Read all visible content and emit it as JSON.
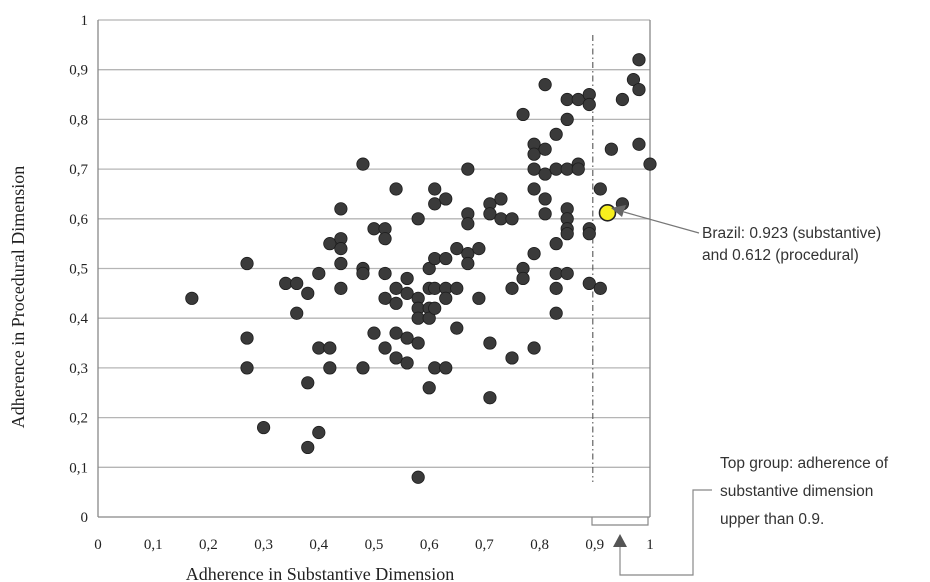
{
  "chart_data": {
    "type": "scatter",
    "xlabel": "Adherence in Substantive Dimension",
    "ylabel": "Adherence in Procedural Dimension",
    "xlim": [
      0,
      1
    ],
    "ylim": [
      0,
      1
    ],
    "x_ticks": [
      "0",
      "0,1",
      "0,2",
      "0,3",
      "0,4",
      "0,5",
      "0,6",
      "0,7",
      "0,8",
      "0,9",
      "1"
    ],
    "y_ticks": [
      "0",
      "0,1",
      "0,2",
      "0,3",
      "0,4",
      "0,5",
      "0,6",
      "0,7",
      "0,8",
      "0,9",
      "1"
    ],
    "grid": "horizontal",
    "threshold_x": 0.9,
    "colors": {
      "points": "#3a3a3a",
      "highlight": "#f7ef1e",
      "grid": "#b5b5b5",
      "axis": "#888888",
      "annotation": "#777777"
    },
    "points": [
      [
        0.17,
        0.44
      ],
      [
        0.27,
        0.51
      ],
      [
        0.27,
        0.36
      ],
      [
        0.27,
        0.3
      ],
      [
        0.3,
        0.18
      ],
      [
        0.34,
        0.47
      ],
      [
        0.36,
        0.47
      ],
      [
        0.36,
        0.41
      ],
      [
        0.38,
        0.45
      ],
      [
        0.38,
        0.27
      ],
      [
        0.38,
        0.14
      ],
      [
        0.4,
        0.49
      ],
      [
        0.4,
        0.34
      ],
      [
        0.4,
        0.17
      ],
      [
        0.42,
        0.55
      ],
      [
        0.42,
        0.34
      ],
      [
        0.42,
        0.3
      ],
      [
        0.44,
        0.62
      ],
      [
        0.44,
        0.56
      ],
      [
        0.44,
        0.54
      ],
      [
        0.44,
        0.51
      ],
      [
        0.44,
        0.46
      ],
      [
        0.48,
        0.71
      ],
      [
        0.48,
        0.5
      ],
      [
        0.48,
        0.49
      ],
      [
        0.48,
        0.3
      ],
      [
        0.5,
        0.58
      ],
      [
        0.5,
        0.37
      ],
      [
        0.52,
        0.58
      ],
      [
        0.52,
        0.56
      ],
      [
        0.52,
        0.49
      ],
      [
        0.52,
        0.44
      ],
      [
        0.52,
        0.34
      ],
      [
        0.54,
        0.66
      ],
      [
        0.54,
        0.46
      ],
      [
        0.54,
        0.43
      ],
      [
        0.54,
        0.37
      ],
      [
        0.54,
        0.32
      ],
      [
        0.56,
        0.48
      ],
      [
        0.56,
        0.45
      ],
      [
        0.56,
        0.36
      ],
      [
        0.56,
        0.31
      ],
      [
        0.58,
        0.6
      ],
      [
        0.58,
        0.44
      ],
      [
        0.58,
        0.42
      ],
      [
        0.58,
        0.4
      ],
      [
        0.58,
        0.35
      ],
      [
        0.58,
        0.08
      ],
      [
        0.6,
        0.5
      ],
      [
        0.6,
        0.46
      ],
      [
        0.6,
        0.42
      ],
      [
        0.6,
        0.4
      ],
      [
        0.6,
        0.26
      ],
      [
        0.61,
        0.66
      ],
      [
        0.61,
        0.63
      ],
      [
        0.61,
        0.52
      ],
      [
        0.61,
        0.46
      ],
      [
        0.61,
        0.42
      ],
      [
        0.61,
        0.3
      ],
      [
        0.63,
        0.64
      ],
      [
        0.63,
        0.52
      ],
      [
        0.63,
        0.46
      ],
      [
        0.63,
        0.44
      ],
      [
        0.63,
        0.3
      ],
      [
        0.65,
        0.54
      ],
      [
        0.65,
        0.46
      ],
      [
        0.65,
        0.38
      ],
      [
        0.67,
        0.7
      ],
      [
        0.67,
        0.61
      ],
      [
        0.67,
        0.59
      ],
      [
        0.67,
        0.53
      ],
      [
        0.67,
        0.51
      ],
      [
        0.69,
        0.54
      ],
      [
        0.69,
        0.44
      ],
      [
        0.71,
        0.63
      ],
      [
        0.71,
        0.61
      ],
      [
        0.71,
        0.35
      ],
      [
        0.71,
        0.24
      ],
      [
        0.73,
        0.64
      ],
      [
        0.73,
        0.6
      ],
      [
        0.75,
        0.6
      ],
      [
        0.75,
        0.46
      ],
      [
        0.75,
        0.32
      ],
      [
        0.77,
        0.81
      ],
      [
        0.77,
        0.5
      ],
      [
        0.77,
        0.48
      ],
      [
        0.79,
        0.75
      ],
      [
        0.79,
        0.73
      ],
      [
        0.79,
        0.7
      ],
      [
        0.79,
        0.66
      ],
      [
        0.79,
        0.53
      ],
      [
        0.79,
        0.34
      ],
      [
        0.81,
        0.87
      ],
      [
        0.81,
        0.74
      ],
      [
        0.81,
        0.69
      ],
      [
        0.81,
        0.64
      ],
      [
        0.81,
        0.61
      ],
      [
        0.83,
        0.77
      ],
      [
        0.83,
        0.7
      ],
      [
        0.83,
        0.55
      ],
      [
        0.83,
        0.49
      ],
      [
        0.83,
        0.46
      ],
      [
        0.83,
        0.41
      ],
      [
        0.85,
        0.84
      ],
      [
        0.85,
        0.8
      ],
      [
        0.85,
        0.7
      ],
      [
        0.85,
        0.62
      ],
      [
        0.85,
        0.6
      ],
      [
        0.85,
        0.58
      ],
      [
        0.85,
        0.57
      ],
      [
        0.85,
        0.49
      ],
      [
        0.87,
        0.84
      ],
      [
        0.87,
        0.71
      ],
      [
        0.87,
        0.7
      ],
      [
        0.89,
        0.85
      ],
      [
        0.89,
        0.83
      ],
      [
        0.89,
        0.58
      ],
      [
        0.89,
        0.57
      ],
      [
        0.89,
        0.47
      ],
      [
        0.91,
        0.66
      ],
      [
        0.91,
        0.46
      ],
      [
        0.93,
        0.74
      ],
      [
        0.95,
        0.84
      ],
      [
        0.95,
        0.63
      ],
      [
        0.97,
        0.88
      ],
      [
        0.98,
        0.92
      ],
      [
        0.98,
        0.86
      ],
      [
        0.98,
        0.75
      ],
      [
        1.0,
        0.71
      ]
    ],
    "highlight": {
      "x": 0.923,
      "y": 0.612
    },
    "annotations": {
      "brazil": [
        "Brazil: 0.923 (substantive)",
        "and 0.612 (procedural)"
      ],
      "top_group": [
        "Top group: adherence of",
        "substantive dimension",
        "upper than 0.9."
      ]
    }
  }
}
